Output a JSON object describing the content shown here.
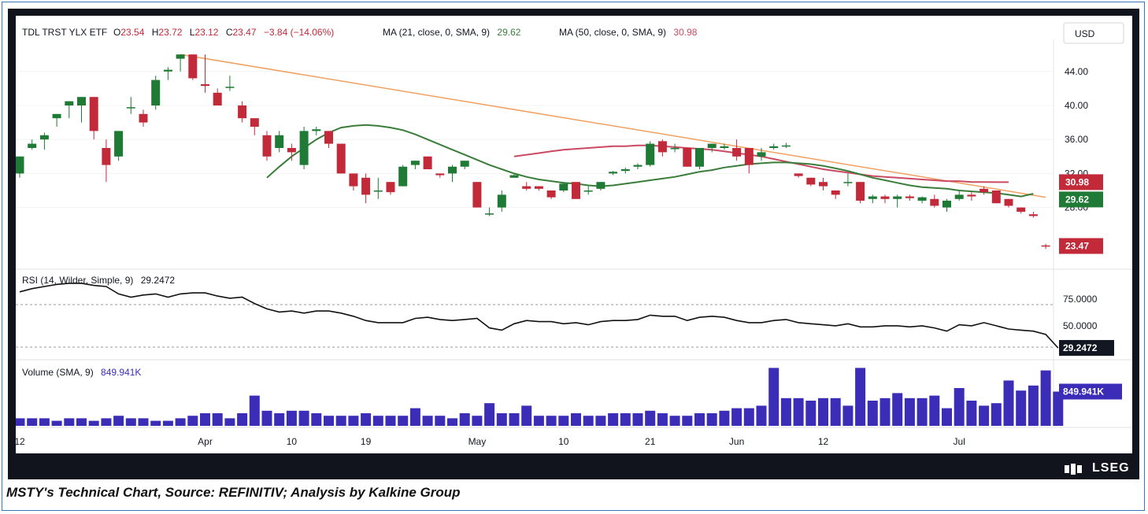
{
  "header": {
    "symbol": "TDL TRST YLX ETF",
    "o_label": "O",
    "o_value": "23.54",
    "h_label": "H",
    "h_value": "23.72",
    "l_label": "L",
    "l_value": "23.12",
    "c_label": "C",
    "c_value": "23.47",
    "change": "−3.84 (−14.06%)",
    "ma21_label": "MA (21, close, 0, SMA, 9)",
    "ma21_value": "29.62",
    "ma50_label": "MA (50, close, 0, SMA, 9)",
    "ma50_value": "30.98",
    "currency": "USD"
  },
  "rsi": {
    "label": "RSI (14, Wilder, Simple, 9)",
    "value": "29.2472"
  },
  "volume": {
    "label": "Volume (SMA, 9)",
    "value": "849.941K"
  },
  "price_badges": {
    "ma50": "30.98",
    "ma21": "29.62",
    "last": "23.47"
  },
  "colors": {
    "up": "#1e7a34",
    "down": "#c22a3a",
    "ma21": "#3a7d3a",
    "ma50": "#c94a62",
    "trend": "#f0a060",
    "volume": "#3c2db8",
    "rsi": "#111111"
  },
  "brand": "LSEG",
  "caption": "MSTY's Technical Chart, Source: REFINITIV; Analysis by Kalkine Group",
  "chart_data": {
    "type": "candlestick",
    "price_axis": {
      "ticks": [
        "44.00",
        "40.00",
        "36.00",
        "32.00",
        "28.00"
      ],
      "tick_values": [
        44,
        40,
        36,
        32,
        28
      ],
      "range": [
        20,
        47
      ]
    },
    "rsi_axis": {
      "ticks": [
        "75.0000",
        "50.0000"
      ],
      "tick_values": [
        75,
        50
      ],
      "levels": [
        70,
        30
      ],
      "range": [
        27,
        90
      ]
    },
    "x_axis": {
      "labels": [
        "12",
        "Apr",
        "10",
        "19",
        "May",
        "10",
        "21",
        "Jun",
        "12",
        "Jul"
      ],
      "label_index": [
        0,
        15,
        22,
        28,
        37,
        44,
        51,
        58,
        65,
        76
      ]
    },
    "candles": [
      {
        "o": 32.0,
        "h": 34.0,
        "l": 31.5,
        "c": 34.0
      },
      {
        "o": 35.0,
        "h": 36.0,
        "l": 34.8,
        "c": 35.5
      },
      {
        "o": 36.0,
        "h": 36.8,
        "l": 34.8,
        "c": 36.5
      },
      {
        "o": 38.5,
        "h": 39.0,
        "l": 37.5,
        "c": 39.0
      },
      {
        "o": 40.0,
        "h": 40.5,
        "l": 38.5,
        "c": 40.5
      },
      {
        "o": 40.0,
        "h": 41.0,
        "l": 38.0,
        "c": 41.0
      },
      {
        "o": 41.0,
        "h": 41.0,
        "l": 36.0,
        "c": 37.0
      },
      {
        "o": 35.0,
        "h": 36.0,
        "l": 31.0,
        "c": 33.0
      },
      {
        "o": 34.0,
        "h": 37.0,
        "l": 33.5,
        "c": 37.0
      },
      {
        "o": 39.8,
        "h": 41.0,
        "l": 39.0,
        "c": 39.8
      },
      {
        "o": 39.0,
        "h": 39.5,
        "l": 37.5,
        "c": 38.0
      },
      {
        "o": 40.0,
        "h": 43.5,
        "l": 39.5,
        "c": 43.0
      },
      {
        "o": 44.0,
        "h": 44.5,
        "l": 43.0,
        "c": 44.2
      },
      {
        "o": 45.5,
        "h": 46.0,
        "l": 44.0,
        "c": 46.0
      },
      {
        "o": 46.0,
        "h": 46.0,
        "l": 43.0,
        "c": 43.2
      },
      {
        "o": 42.5,
        "h": 46.0,
        "l": 41.5,
        "c": 42.3
      },
      {
        "o": 41.5,
        "h": 42.0,
        "l": 40.0,
        "c": 40.0
      },
      {
        "o": 42.2,
        "h": 43.5,
        "l": 41.7,
        "c": 42.2
      },
      {
        "o": 40.0,
        "h": 40.5,
        "l": 38.0,
        "c": 38.5
      },
      {
        "o": 38.5,
        "h": 38.5,
        "l": 36.5,
        "c": 37.5
      },
      {
        "o": 36.5,
        "h": 37.0,
        "l": 33.5,
        "c": 34.0
      },
      {
        "o": 35.0,
        "h": 37.0,
        "l": 34.5,
        "c": 36.5
      },
      {
        "o": 35.0,
        "h": 35.5,
        "l": 33.5,
        "c": 34.5
      },
      {
        "o": 33.0,
        "h": 37.5,
        "l": 32.5,
        "c": 37.0
      },
      {
        "o": 37.0,
        "h": 37.5,
        "l": 36.5,
        "c": 37.2
      },
      {
        "o": 37.0,
        "h": 37.0,
        "l": 35.0,
        "c": 35.5
      },
      {
        "o": 35.5,
        "h": 35.5,
        "l": 32.0,
        "c": 32.0
      },
      {
        "o": 32.0,
        "h": 32.0,
        "l": 30.0,
        "c": 30.5
      },
      {
        "o": 31.5,
        "h": 32.0,
        "l": 28.5,
        "c": 29.5
      },
      {
        "o": 30.0,
        "h": 31.5,
        "l": 29.0,
        "c": 30.0
      },
      {
        "o": 31.0,
        "h": 31.0,
        "l": 29.5,
        "c": 29.8
      },
      {
        "o": 30.5,
        "h": 33.0,
        "l": 30.5,
        "c": 32.8
      },
      {
        "o": 33.0,
        "h": 33.5,
        "l": 32.5,
        "c": 33.5
      },
      {
        "o": 34.0,
        "h": 34.0,
        "l": 32.5,
        "c": 32.5
      },
      {
        "o": 32.0,
        "h": 32.0,
        "l": 31.5,
        "c": 31.8
      },
      {
        "o": 32.0,
        "h": 33.0,
        "l": 31.0,
        "c": 32.8
      },
      {
        "o": 32.8,
        "h": 33.5,
        "l": 32.5,
        "c": 33.5
      },
      {
        "o": 31.0,
        "h": 31.0,
        "l": 28.0,
        "c": 28.0
      },
      {
        "o": 27.3,
        "h": 28.0,
        "l": 27.0,
        "c": 27.3
      },
      {
        "o": 28.0,
        "h": 30.0,
        "l": 27.5,
        "c": 29.5
      },
      {
        "o": 31.5,
        "h": 32.0,
        "l": 31.5,
        "c": 31.8
      },
      {
        "o": 30.5,
        "h": 31.0,
        "l": 30.0,
        "c": 30.2
      },
      {
        "o": 30.5,
        "h": 30.5,
        "l": 30.0,
        "c": 30.2
      },
      {
        "o": 30.0,
        "h": 30.0,
        "l": 29.0,
        "c": 29.2
      },
      {
        "o": 30.0,
        "h": 31.0,
        "l": 29.8,
        "c": 30.8
      },
      {
        "o": 31.0,
        "h": 31.0,
        "l": 29.0,
        "c": 29.0
      },
      {
        "o": 30.0,
        "h": 30.5,
        "l": 29.5,
        "c": 30.0
      },
      {
        "o": 30.2,
        "h": 31.0,
        "l": 30.0,
        "c": 31.0
      },
      {
        "o": 32.0,
        "h": 32.3,
        "l": 31.8,
        "c": 32.2
      },
      {
        "o": 32.3,
        "h": 32.7,
        "l": 32.0,
        "c": 32.5
      },
      {
        "o": 32.8,
        "h": 33.2,
        "l": 32.5,
        "c": 33.0
      },
      {
        "o": 33.0,
        "h": 35.8,
        "l": 32.8,
        "c": 35.5
      },
      {
        "o": 35.8,
        "h": 36.0,
        "l": 34.0,
        "c": 34.5
      },
      {
        "o": 35.0,
        "h": 35.5,
        "l": 34.5,
        "c": 35.0
      },
      {
        "o": 35.0,
        "h": 35.0,
        "l": 32.8,
        "c": 32.8
      },
      {
        "o": 32.8,
        "h": 35.0,
        "l": 32.5,
        "c": 35.0
      },
      {
        "o": 35.0,
        "h": 35.5,
        "l": 34.5,
        "c": 35.5
      },
      {
        "o": 35.0,
        "h": 35.5,
        "l": 34.8,
        "c": 35.2
      },
      {
        "o": 35.0,
        "h": 36.0,
        "l": 33.5,
        "c": 34.0
      },
      {
        "o": 35.0,
        "h": 35.0,
        "l": 32.0,
        "c": 33.0
      },
      {
        "o": 34.0,
        "h": 35.0,
        "l": 33.5,
        "c": 34.5
      },
      {
        "o": 35.0,
        "h": 35.5,
        "l": 34.8,
        "c": 35.2
      },
      {
        "o": 35.3,
        "h": 35.6,
        "l": 35.0,
        "c": 35.3
      },
      {
        "o": 32.0,
        "h": 32.0,
        "l": 31.5,
        "c": 31.7
      },
      {
        "o": 31.5,
        "h": 31.5,
        "l": 30.5,
        "c": 30.7
      },
      {
        "o": 31.0,
        "h": 31.5,
        "l": 30.0,
        "c": 30.5
      },
      {
        "o": 30.0,
        "h": 30.0,
        "l": 29.0,
        "c": 29.5
      },
      {
        "o": 31.0,
        "h": 32.0,
        "l": 30.5,
        "c": 31.0
      },
      {
        "o": 31.0,
        "h": 31.0,
        "l": 28.5,
        "c": 28.8
      },
      {
        "o": 29.0,
        "h": 29.5,
        "l": 28.5,
        "c": 29.3
      },
      {
        "o": 29.3,
        "h": 29.5,
        "l": 28.5,
        "c": 29.0
      },
      {
        "o": 29.0,
        "h": 29.5,
        "l": 28.0,
        "c": 29.3
      },
      {
        "o": 29.3,
        "h": 29.5,
        "l": 28.8,
        "c": 29.1
      },
      {
        "o": 28.8,
        "h": 29.3,
        "l": 28.5,
        "c": 29.2
      },
      {
        "o": 29.0,
        "h": 29.5,
        "l": 28.0,
        "c": 28.2
      },
      {
        "o": 28.0,
        "h": 29.0,
        "l": 27.5,
        "c": 28.8
      },
      {
        "o": 29.0,
        "h": 30.0,
        "l": 28.8,
        "c": 29.5
      },
      {
        "o": 29.5,
        "h": 29.8,
        "l": 28.8,
        "c": 29.3
      },
      {
        "o": 30.2,
        "h": 30.5,
        "l": 29.5,
        "c": 29.8
      },
      {
        "o": 30.0,
        "h": 30.0,
        "l": 28.5,
        "c": 28.5
      },
      {
        "o": 29.0,
        "h": 29.0,
        "l": 28.0,
        "c": 28.2
      },
      {
        "o": 28.0,
        "h": 28.0,
        "l": 27.3,
        "c": 27.5
      },
      {
        "o": 27.2,
        "h": 27.5,
        "l": 26.8,
        "c": 27.0
      },
      {
        "o": 23.54,
        "h": 23.72,
        "l": 23.12,
        "c": 23.47
      }
    ],
    "ma21": [
      null,
      null,
      null,
      null,
      null,
      null,
      null,
      null,
      null,
      null,
      null,
      null,
      null,
      null,
      null,
      null,
      null,
      null,
      null,
      null,
      31.5,
      32.8,
      34.0,
      35.0,
      36.0,
      36.8,
      37.4,
      37.6,
      37.7,
      37.6,
      37.4,
      37.1,
      36.6,
      36.0,
      35.4,
      34.8,
      34.2,
      33.6,
      33.0,
      32.5,
      32.0,
      31.6,
      31.3,
      31.1,
      30.9,
      30.8,
      30.6,
      30.5,
      30.6,
      30.8,
      31.0,
      31.2,
      31.4,
      31.6,
      31.9,
      32.2,
      32.4,
      32.7,
      32.9,
      33.1,
      33.2,
      33.3,
      33.3,
      33.2,
      33.1,
      32.9,
      32.6,
      32.3,
      31.9,
      31.5,
      31.2,
      30.9,
      30.6,
      30.4,
      30.3,
      30.2,
      30.0,
      29.9,
      29.8,
      29.7,
      29.5,
      29.3,
      29.62
    ],
    "ma50": [
      null,
      null,
      null,
      null,
      null,
      null,
      null,
      null,
      null,
      null,
      null,
      null,
      null,
      null,
      null,
      null,
      null,
      null,
      null,
      null,
      null,
      null,
      null,
      null,
      null,
      null,
      null,
      null,
      null,
      null,
      null,
      null,
      null,
      null,
      null,
      null,
      null,
      null,
      null,
      null,
      34.0,
      34.2,
      34.4,
      34.6,
      34.8,
      34.9,
      35.0,
      35.1,
      35.2,
      35.2,
      35.3,
      35.3,
      35.2,
      35.1,
      35.0,
      34.9,
      34.8,
      34.6,
      34.4,
      34.2,
      34.0,
      33.7,
      33.4,
      33.1,
      32.8,
      32.5,
      32.3,
      32.1,
      31.9,
      31.7,
      31.6,
      31.5,
      31.4,
      31.3,
      31.2,
      31.1,
      31.1,
      31.0,
      31.0,
      30.98,
      30.98
    ],
    "trendline": [
      {
        "index": 13,
        "value": 46.0
      },
      {
        "index": 83,
        "value": 29.2
      }
    ],
    "rsi": [
      82,
      85,
      87,
      89,
      90,
      90,
      88,
      87,
      80,
      77,
      79,
      80,
      77,
      80,
      81,
      81,
      78,
      76,
      77,
      71,
      66,
      63,
      64,
      62,
      64,
      64,
      62,
      59,
      55,
      53,
      53,
      53,
      57,
      58,
      56,
      55,
      56,
      57,
      48,
      46,
      52,
      55,
      54,
      54,
      52,
      53,
      51,
      54,
      55,
      55,
      56,
      60,
      59,
      59,
      55,
      58,
      59,
      58,
      55,
      53,
      53,
      55,
      56,
      53,
      52,
      51,
      50,
      52,
      49,
      49,
      50,
      50,
      49,
      50,
      48,
      45,
      51,
      50,
      53,
      50,
      47,
      46,
      45,
      42,
      29.2472
    ],
    "volume": [
      3,
      3,
      3,
      2,
      3,
      3,
      2,
      3,
      4,
      3,
      3,
      2,
      2,
      3,
      4,
      5,
      5,
      3,
      5,
      12,
      6,
      5,
      6,
      6,
      5,
      4,
      4,
      4,
      5,
      4,
      4,
      4,
      7,
      4,
      4,
      3,
      5,
      4,
      9,
      5,
      5,
      8,
      4,
      4,
      4,
      5,
      4,
      4,
      5,
      5,
      5,
      6,
      5,
      4,
      4,
      5,
      5,
      6,
      7,
      7,
      8,
      23,
      11,
      11,
      10,
      11,
      11,
      8,
      23,
      10,
      11,
      13,
      11,
      11,
      12,
      7,
      15,
      10,
      8,
      9,
      18,
      14,
      16,
      22,
      13.6
    ]
  }
}
